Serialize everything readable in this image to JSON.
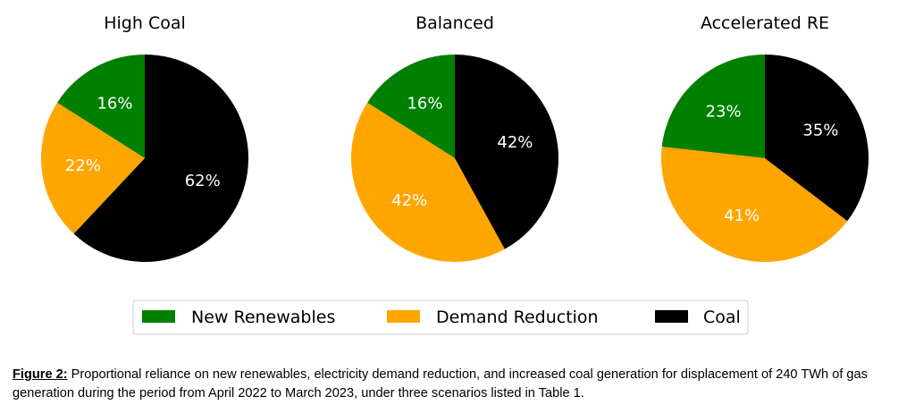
{
  "chart_data": {
    "type": "pie",
    "series_names": [
      "New Renewables",
      "Demand Reduction",
      "Coal"
    ],
    "colors": {
      "New Renewables": "#008000",
      "Demand Reduction": "#ffa500",
      "Coal": "#000000"
    },
    "pies": [
      {
        "title": "High Coal",
        "values": [
          16,
          22,
          62
        ],
        "labels": [
          "16%",
          "22%",
          "62%"
        ]
      },
      {
        "title": "Balanced",
        "values": [
          16,
          42,
          42
        ],
        "labels": [
          "16%",
          "42%",
          "42%"
        ]
      },
      {
        "title": "Accelerated RE",
        "values": [
          23,
          41,
          35
        ],
        "labels": [
          "23%",
          "41%",
          "35%"
        ]
      }
    ],
    "legend": {
      "placement": "bottom-center",
      "entries": [
        "New Renewables",
        "Demand Reduction",
        "Coal"
      ]
    }
  },
  "caption": {
    "label": "Figure 2:",
    "text": " Proportional reliance on new renewables, electricity demand reduction, and increased coal generation for displacement of 240 TWh of gas generation during the period from April 2022 to March 2023, under three scenarios listed in Table 1."
  }
}
